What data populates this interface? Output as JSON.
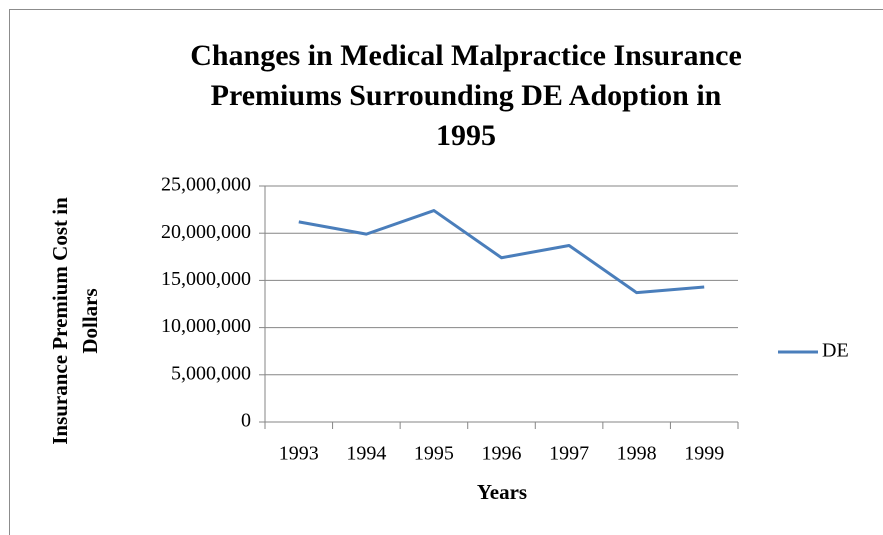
{
  "chart_data": {
    "type": "line",
    "title": [
      "Changes in Medical Malpractice Insurance",
      "Premiums Surrounding DE Adoption in",
      "1995"
    ],
    "xlabel": "Years",
    "ylabel": [
      "Insurance Premium Cost in",
      "Dollars"
    ],
    "categories": [
      "1993",
      "1994",
      "1995",
      "1996",
      "1997",
      "1998",
      "1999"
    ],
    "series": [
      {
        "name": "DE",
        "color": "#4a7ebb",
        "values": [
          21200000,
          19900000,
          22400000,
          17400000,
          18700000,
          13700000,
          14300000
        ]
      }
    ],
    "ylim": [
      0,
      25000000
    ],
    "yticks": [
      0,
      {
        "value": 5000000,
        "label": "5,000,000"
      },
      {
        "value": 10000000,
        "label": "10,000,000"
      },
      {
        "value": 15000000,
        "label": "15,000,000"
      },
      {
        "value": 20000000,
        "label": "20,000,000"
      },
      {
        "value": 25000000,
        "label": "25,000,000"
      }
    ],
    "grid": true,
    "legend": "right"
  }
}
